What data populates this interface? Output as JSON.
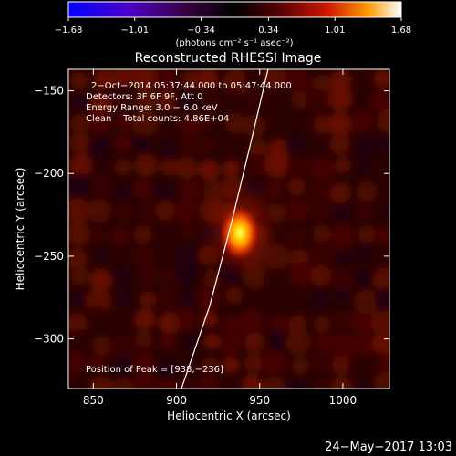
{
  "chart_data": {
    "type": "heatmap",
    "title": "Reconstructed RHESSI Image",
    "xlabel": "Heliocentric X (arcsec)",
    "ylabel": "Heliocentric Y (arcsec)",
    "xlim": [
      835,
      1028
    ],
    "ylim": [
      -330,
      -137
    ],
    "x_ticks": [
      850,
      900,
      950,
      1000
    ],
    "y_ticks": [
      -150,
      -200,
      -250,
      -300
    ],
    "x_tick_labels": [
      "850",
      "900",
      "950",
      "1000"
    ],
    "y_tick_labels": [
      "−150",
      "−200",
      "−250",
      "−300"
    ],
    "colorbar": {
      "range": [
        -1.68,
        1.68
      ],
      "ticks": [
        -1.68,
        -1.01,
        -0.34,
        0.34,
        1.01,
        1.68
      ],
      "tick_labels": [
        "−1.68",
        "−1.01",
        "−0.34",
        "0.34",
        "1.01",
        "1.68"
      ],
      "unit_label": "(photons cm⁻² s⁻¹ asec⁻²)",
      "colormap": "blue-purple-black-red-yellow-white"
    },
    "peak": [
      938,
      -236
    ],
    "annotations": [
      "2−Oct−2014 05:37:44.000 to 05:47:44.000",
      "Detectors: 3F 6F 9F, Att 0",
      "Energy Range: 3.0 − 6.0 keV",
      "Clean    Total counts: 4.86E+04",
      "Position of Peak = [938,−236]"
    ],
    "limb_points": [
      [
        903,
        -330
      ],
      [
        920,
        -280
      ],
      [
        933,
        -230
      ],
      [
        945,
        -180
      ],
      [
        955,
        -137
      ]
    ]
  },
  "footer_date": "24−May−2017 13:03"
}
